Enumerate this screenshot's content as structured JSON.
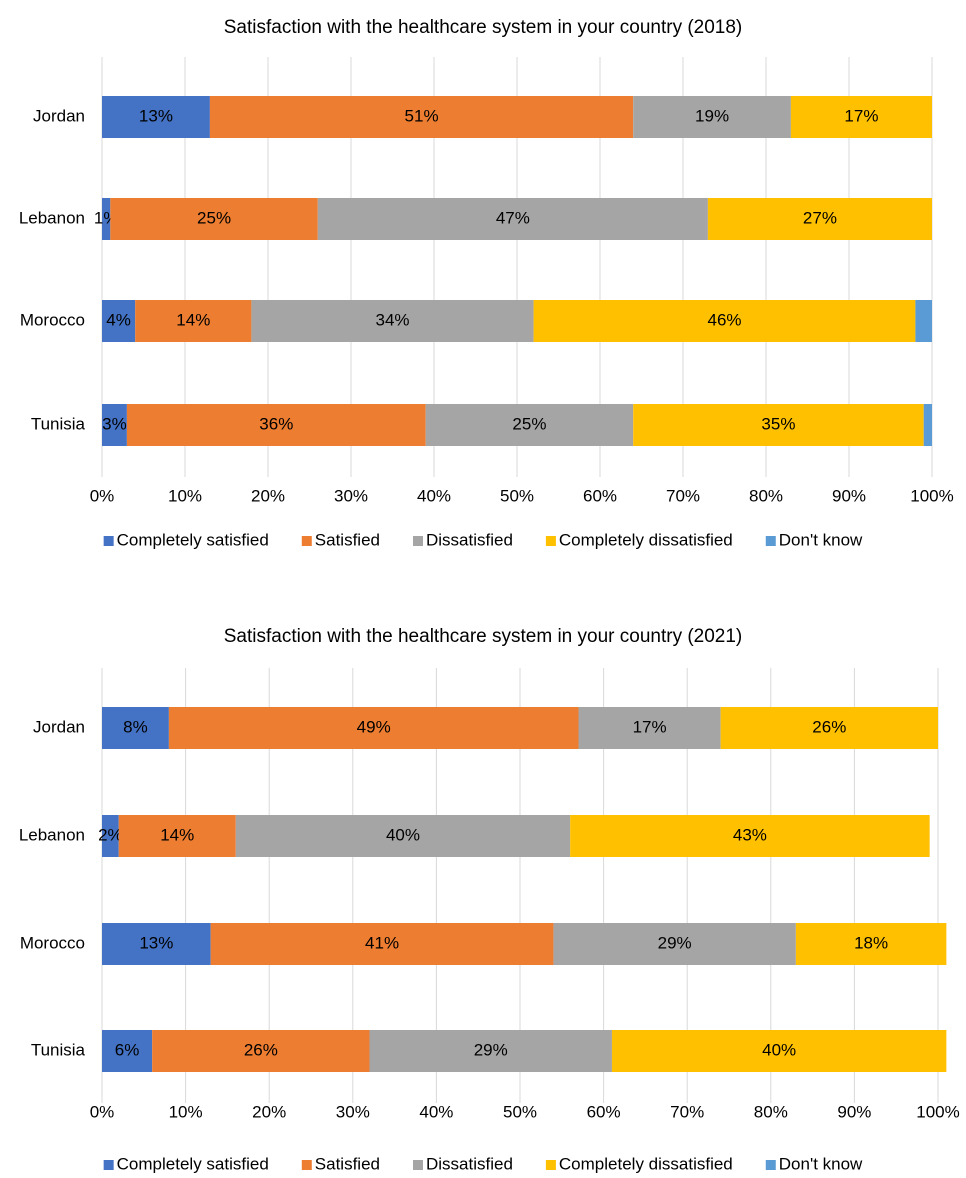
{
  "chart_data": [
    {
      "type": "stacked_bar_horizontal",
      "title": "Satisfaction with the healthcare system in your country (2018)",
      "categories": [
        "Jordan",
        "Lebanon",
        "Morocco",
        "Tunisia"
      ],
      "series": [
        {
          "name": "Completely satisfied",
          "color": "#4472c4",
          "values": [
            13,
            1,
            4,
            3
          ],
          "value_labels": [
            "13%",
            "1%",
            "4%",
            "3%"
          ]
        },
        {
          "name": "Satisfied",
          "color": "#ed7d31",
          "values": [
            51,
            25,
            14,
            36
          ],
          "value_labels": [
            "51%",
            "25%",
            "14%",
            "36%"
          ]
        },
        {
          "name": "Dissatisfied",
          "color": "#a5a5a5",
          "values": [
            19,
            47,
            34,
            25
          ],
          "value_labels": [
            "19%",
            "47%",
            "34%",
            "25%"
          ]
        },
        {
          "name": "Completely dissatisfied",
          "color": "#ffc000",
          "values": [
            17,
            27,
            46,
            35
          ],
          "value_labels": [
            "17%",
            "27%",
            "46%",
            "35%"
          ]
        },
        {
          "name": "Don't know",
          "color": "#5b9bd5",
          "values": [
            0,
            0,
            2,
            1
          ]
        }
      ],
      "xlim": [
        0,
        100
      ],
      "xticks": [
        {
          "value": 0,
          "label": "0%"
        },
        {
          "value": 10,
          "label": "10%"
        },
        {
          "value": 20,
          "label": "20%"
        },
        {
          "value": 30,
          "label": "30%"
        },
        {
          "value": 40,
          "label": "40%"
        },
        {
          "value": 50,
          "label": "50%"
        },
        {
          "value": 60,
          "label": "60%"
        },
        {
          "value": 70,
          "label": "70%"
        },
        {
          "value": 80,
          "label": "80%"
        },
        {
          "value": 90,
          "label": "90%"
        },
        {
          "value": 100,
          "label": "100%"
        }
      ],
      "grid": true,
      "legend": "bottom"
    },
    {
      "type": "stacked_bar_horizontal",
      "title": "Satisfaction with the healthcare system in your country (2021)",
      "categories": [
        "Jordan",
        "Lebanon",
        "Morocco",
        "Tunisia"
      ],
      "series": [
        {
          "name": "Completely satisfied",
          "color": "#4472c4",
          "values": [
            8,
            2,
            13,
            6
          ],
          "value_labels": [
            "8%",
            "2%",
            "13%",
            "6%"
          ]
        },
        {
          "name": "Satisfied",
          "color": "#ed7d31",
          "values": [
            49,
            14,
            41,
            26
          ],
          "value_labels": [
            "49%",
            "14%",
            "41%",
            "26%"
          ]
        },
        {
          "name": "Dissatisfied",
          "color": "#a5a5a5",
          "values": [
            17,
            40,
            29,
            29
          ],
          "value_labels": [
            "17%",
            "40%",
            "29%",
            "29%"
          ]
        },
        {
          "name": "Completely dissatisfied",
          "color": "#ffc000",
          "values": [
            26,
            43,
            18,
            40
          ],
          "value_labels": [
            "26%",
            "43%",
            "18%",
            "40%"
          ]
        },
        {
          "name": "Don't know",
          "color": "#5b9bd5",
          "values": [
            0,
            0,
            0,
            0
          ]
        }
      ],
      "xlim": [
        0,
        100
      ],
      "xticks": [
        {
          "value": 0,
          "label": "0%"
        },
        {
          "value": 10,
          "label": "10%"
        },
        {
          "value": 20,
          "label": "20%"
        },
        {
          "value": 30,
          "label": "30%"
        },
        {
          "value": 40,
          "label": "40%"
        },
        {
          "value": 50,
          "label": "50%"
        },
        {
          "value": 60,
          "label": "60%"
        },
        {
          "value": 70,
          "label": "70%"
        },
        {
          "value": 80,
          "label": "80%"
        },
        {
          "value": 90,
          "label": "90%"
        },
        {
          "value": 100,
          "label": "100%"
        }
      ],
      "grid": true,
      "legend": "bottom"
    }
  ]
}
